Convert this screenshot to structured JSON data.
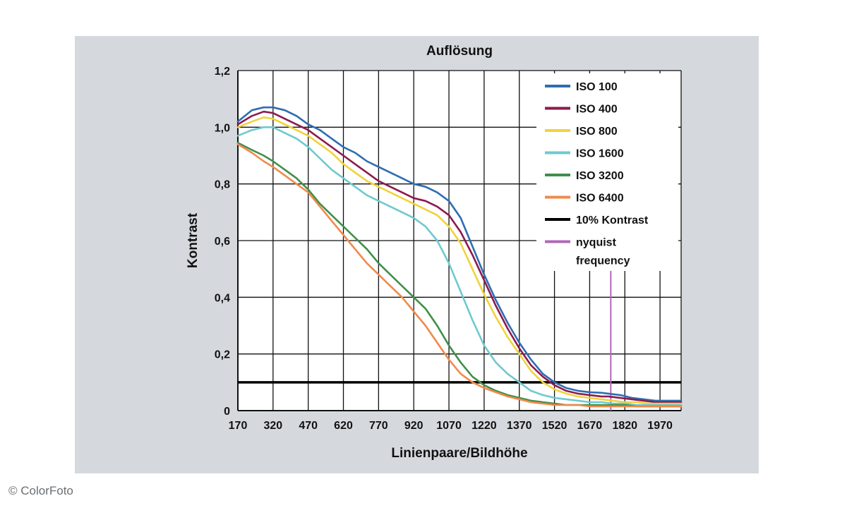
{
  "credit": "© ColorFoto",
  "chart_data": {
    "type": "line",
    "title": "Auflösung",
    "xlabel": "Linienpaare/Bildhöhe",
    "ylabel": "Kontrast",
    "x_ticks": [
      170,
      320,
      470,
      620,
      770,
      920,
      1070,
      1220,
      1370,
      1520,
      1670,
      1820,
      1970
    ],
    "x_range": [
      170,
      2060
    ],
    "y_ticks": [
      "0",
      "0,2",
      "0,4",
      "0,6",
      "0,8",
      "1,0",
      "1,2"
    ],
    "y_tick_values": [
      0,
      0.2,
      0.4,
      0.6,
      0.8,
      1.0,
      1.2
    ],
    "ylim": [
      0,
      1.2
    ],
    "grid": true,
    "legend_position": "top-right",
    "series": [
      {
        "name": "ISO 100",
        "color": "#2e6db3",
        "x": [
          170,
          230,
          280,
          320,
          370,
          420,
          470,
          520,
          570,
          620,
          670,
          720,
          770,
          820,
          870,
          920,
          970,
          1020,
          1070,
          1120,
          1170,
          1220,
          1270,
          1320,
          1370,
          1420,
          1470,
          1520,
          1570,
          1620,
          1670,
          1720,
          1750,
          1800,
          1850,
          1900,
          1950,
          2000,
          2060
        ],
        "values": [
          1.02,
          1.06,
          1.07,
          1.07,
          1.06,
          1.04,
          1.01,
          0.99,
          0.96,
          0.93,
          0.91,
          0.88,
          0.86,
          0.84,
          0.82,
          0.8,
          0.79,
          0.77,
          0.74,
          0.68,
          0.58,
          0.48,
          0.39,
          0.31,
          0.24,
          0.18,
          0.13,
          0.1,
          0.08,
          0.07,
          0.065,
          0.063,
          0.06,
          0.055,
          0.045,
          0.04,
          0.035,
          0.035,
          0.035
        ]
      },
      {
        "name": "ISO 400",
        "color": "#8b1c4f",
        "x": [
          170,
          230,
          280,
          320,
          370,
          420,
          470,
          520,
          570,
          620,
          670,
          720,
          770,
          820,
          870,
          920,
          970,
          1020,
          1070,
          1120,
          1170,
          1220,
          1270,
          1320,
          1370,
          1420,
          1470,
          1520,
          1570,
          1620,
          1670,
          1720,
          1750,
          1800,
          1850,
          1900,
          1950,
          2000,
          2060
        ],
        "values": [
          1.01,
          1.04,
          1.055,
          1.05,
          1.03,
          1.01,
          0.99,
          0.96,
          0.93,
          0.9,
          0.87,
          0.84,
          0.81,
          0.79,
          0.77,
          0.75,
          0.74,
          0.72,
          0.69,
          0.63,
          0.55,
          0.46,
          0.37,
          0.29,
          0.22,
          0.16,
          0.12,
          0.09,
          0.07,
          0.06,
          0.055,
          0.05,
          0.05,
          0.045,
          0.04,
          0.035,
          0.03,
          0.03,
          0.03
        ]
      },
      {
        "name": "ISO 800",
        "color": "#f2d23a",
        "x": [
          170,
          230,
          280,
          320,
          370,
          420,
          470,
          520,
          570,
          620,
          670,
          720,
          770,
          820,
          870,
          920,
          970,
          1020,
          1070,
          1120,
          1170,
          1220,
          1270,
          1320,
          1370,
          1420,
          1470,
          1520,
          1570,
          1620,
          1670,
          1720,
          1770,
          1820,
          1870,
          1920,
          1970,
          2060
        ],
        "values": [
          1.0,
          1.02,
          1.035,
          1.03,
          1.01,
          0.99,
          0.97,
          0.94,
          0.91,
          0.87,
          0.84,
          0.81,
          0.79,
          0.77,
          0.75,
          0.73,
          0.71,
          0.69,
          0.65,
          0.59,
          0.5,
          0.41,
          0.33,
          0.26,
          0.2,
          0.14,
          0.1,
          0.075,
          0.06,
          0.05,
          0.045,
          0.04,
          0.035,
          0.03,
          0.03,
          0.025,
          0.025,
          0.025
        ]
      },
      {
        "name": "ISO 1600",
        "color": "#6fc9cf",
        "x": [
          170,
          230,
          280,
          320,
          370,
          420,
          470,
          520,
          570,
          620,
          670,
          720,
          770,
          820,
          870,
          920,
          970,
          1020,
          1070,
          1120,
          1170,
          1220,
          1270,
          1320,
          1370,
          1420,
          1470,
          1520,
          1570,
          1620,
          1670,
          1720,
          1770,
          1820,
          1870,
          1920,
          1970,
          2060
        ],
        "values": [
          0.97,
          0.99,
          1.0,
          1.0,
          0.98,
          0.96,
          0.93,
          0.89,
          0.85,
          0.82,
          0.79,
          0.76,
          0.74,
          0.72,
          0.7,
          0.68,
          0.65,
          0.6,
          0.52,
          0.42,
          0.32,
          0.23,
          0.17,
          0.13,
          0.1,
          0.07,
          0.055,
          0.045,
          0.04,
          0.035,
          0.03,
          0.03,
          0.025,
          0.025,
          0.02,
          0.02,
          0.02,
          0.02
        ]
      },
      {
        "name": "ISO 3200",
        "color": "#3f8f4a",
        "x": [
          170,
          230,
          280,
          320,
          370,
          420,
          470,
          520,
          570,
          620,
          670,
          720,
          770,
          820,
          870,
          920,
          970,
          1020,
          1070,
          1120,
          1170,
          1220,
          1270,
          1320,
          1370,
          1420,
          1470,
          1520,
          1570,
          1620,
          1670,
          1720,
          1770,
          1820,
          1870,
          1920,
          1970,
          2060
        ],
        "values": [
          0.945,
          0.92,
          0.9,
          0.88,
          0.85,
          0.82,
          0.78,
          0.73,
          0.69,
          0.65,
          0.61,
          0.57,
          0.52,
          0.48,
          0.44,
          0.4,
          0.36,
          0.3,
          0.23,
          0.17,
          0.12,
          0.09,
          0.07,
          0.055,
          0.045,
          0.035,
          0.03,
          0.025,
          0.02,
          0.02,
          0.02,
          0.02,
          0.02,
          0.02,
          0.015,
          0.015,
          0.015,
          0.015
        ]
      },
      {
        "name": "ISO 6400",
        "color": "#f08a4b",
        "x": [
          170,
          230,
          280,
          320,
          370,
          420,
          470,
          520,
          570,
          620,
          670,
          720,
          770,
          820,
          870,
          920,
          970,
          1020,
          1070,
          1120,
          1170,
          1220,
          1270,
          1320,
          1370,
          1420,
          1470,
          1520,
          1570,
          1620,
          1670,
          1720,
          1770,
          1820,
          1870,
          1920,
          1970,
          2060
        ],
        "values": [
          0.94,
          0.91,
          0.88,
          0.86,
          0.83,
          0.8,
          0.77,
          0.72,
          0.67,
          0.62,
          0.57,
          0.52,
          0.48,
          0.44,
          0.4,
          0.35,
          0.3,
          0.24,
          0.18,
          0.13,
          0.1,
          0.08,
          0.065,
          0.05,
          0.04,
          0.03,
          0.025,
          0.02,
          0.02,
          0.02,
          0.015,
          0.015,
          0.015,
          0.015,
          0.015,
          0.015,
          0.015,
          0.015
        ]
      }
    ],
    "reference_lines": [
      {
        "name": "10% Kontrast",
        "orientation": "horizontal",
        "value": 0.1,
        "color": "#000000"
      },
      {
        "name": "nyquist frequency",
        "orientation": "vertical",
        "value": 1760,
        "color": "#b069b6"
      }
    ],
    "legend": [
      {
        "label": "ISO 100",
        "color": "#2e6db3"
      },
      {
        "label": "ISO 400",
        "color": "#8b1c4f"
      },
      {
        "label": "ISO 800",
        "color": "#f2d23a"
      },
      {
        "label": "ISO 1600",
        "color": "#6fc9cf"
      },
      {
        "label": "ISO 3200",
        "color": "#3f8f4a"
      },
      {
        "label": "ISO 6400",
        "color": "#f08a4b"
      },
      {
        "label": "10% Kontrast",
        "color": "#000000"
      },
      {
        "label": "nyquist frequency",
        "label_lines": [
          "nyquist",
          "frequency"
        ],
        "color": "#b069b6"
      }
    ]
  }
}
